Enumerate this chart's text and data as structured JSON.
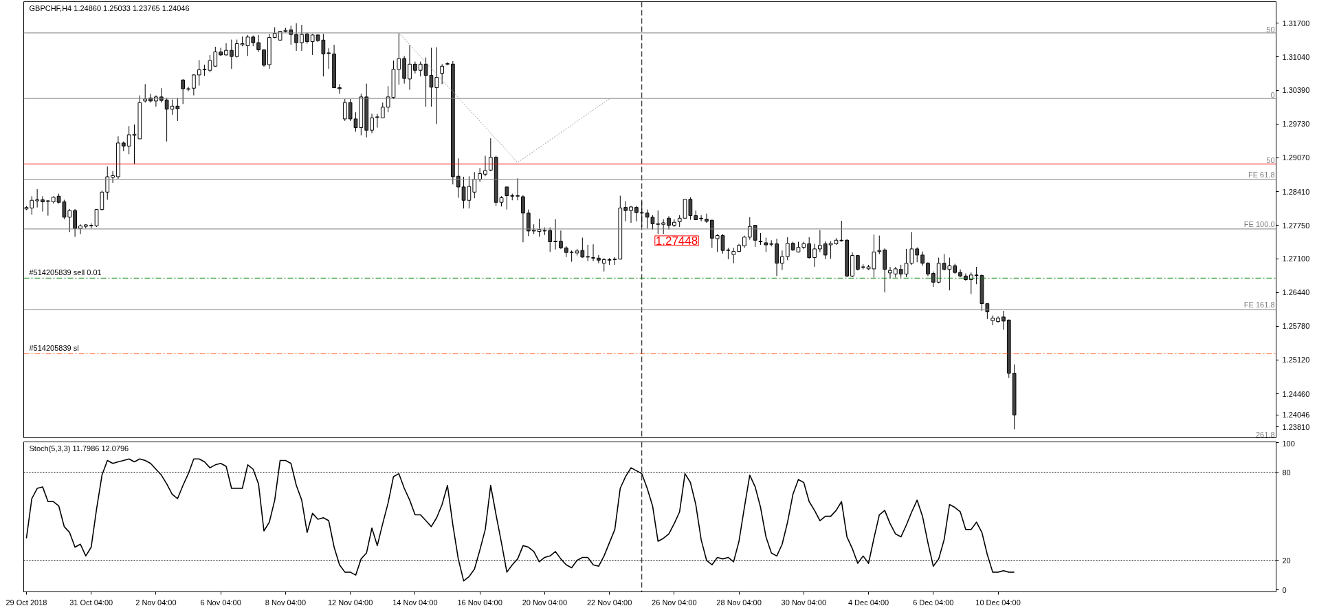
{
  "chart_data": [
    {
      "type": "candlestick",
      "title": "GBPCHF,H4  1.24860 1.25033 1.23765 1.24046",
      "categories": [
        "29 Oct 2018",
        null,
        null,
        null,
        null,
        null,
        null,
        null,
        null,
        null,
        null,
        null,
        "31 Oct 04:00",
        null,
        null,
        null,
        null,
        null,
        null,
        null,
        null,
        null,
        null,
        null,
        "2 Nov 04:00",
        null,
        null,
        null,
        null,
        null,
        null,
        null,
        null,
        null,
        null,
        null,
        "6 Nov 04:00",
        null,
        null,
        null,
        null,
        null,
        null,
        null,
        null,
        null,
        null,
        null,
        "8 Nov 04:00",
        null,
        null,
        null,
        null,
        null,
        null,
        null,
        null,
        null,
        null,
        null,
        "12 Nov 04:00",
        null,
        null,
        null,
        null,
        null,
        null,
        null,
        null,
        null,
        null,
        null,
        "14 Nov 04:00",
        null,
        null,
        null,
        null,
        null,
        null,
        null,
        null,
        null,
        null,
        null,
        "16 Nov 04:00",
        null,
        null,
        null,
        null,
        null,
        null,
        null,
        null,
        null,
        null,
        null,
        "20 Nov 04:00",
        null,
        null,
        null,
        null,
        null,
        null,
        null,
        null,
        null,
        null,
        null,
        "22 Nov 04:00",
        null,
        null,
        null,
        null,
        null,
        null,
        null,
        null,
        null,
        null,
        null,
        "26 Nov 04:00",
        null,
        null,
        null,
        null,
        null,
        null,
        null,
        null,
        null,
        null,
        null,
        "28 Nov 04:00",
        null,
        null,
        null,
        null,
        null,
        null,
        null,
        null,
        null,
        null,
        null,
        "30 Nov 04:00",
        null,
        null,
        null,
        null,
        null,
        null,
        null,
        null,
        null,
        null,
        null,
        "4 Dec 04:00",
        null,
        null,
        null,
        null,
        null,
        null,
        null,
        null,
        null,
        null,
        null,
        "6 Dec 04:00",
        null,
        null,
        null,
        null,
        null,
        null,
        null,
        null,
        null,
        null,
        null,
        "10 Dec 04:00",
        null,
        null,
        null,
        null,
        null,
        null,
        null,
        null,
        null,
        null,
        null,
        null,
        null,
        null,
        null,
        null,
        null,
        null,
        null,
        null,
        null,
        null,
        null,
        null,
        null,
        null,
        null,
        null,
        null,
        null,
        null,
        null,
        null,
        null,
        null,
        null,
        null,
        null,
        null,
        null,
        null,
        null,
        null,
        null,
        null,
        null,
        null,
        null,
        null,
        null,
        null
      ],
      "ohlc": [
        [
          1.2807,
          1.2813,
          1.2805,
          1.281
        ],
        [
          1.2809,
          1.2832,
          1.2796,
          1.2824
        ],
        [
          1.2823,
          1.2846,
          1.281,
          1.2825
        ],
        [
          1.2825,
          1.2832,
          1.2802,
          1.2821
        ],
        [
          1.2823,
          1.2824,
          1.2794,
          1.2822
        ],
        [
          1.2821,
          1.2832,
          1.2818,
          1.283
        ],
        [
          1.2832,
          1.2837,
          1.2818,
          1.282
        ],
        [
          1.2821,
          1.2825,
          1.2787,
          1.2791
        ],
        [
          1.2791,
          1.2807,
          1.2762,
          1.2804
        ],
        [
          1.2804,
          1.2807,
          1.2753,
          1.2769
        ],
        [
          1.2769,
          1.2777,
          1.2758,
          1.2774
        ],
        [
          1.2773,
          1.2777,
          1.2769,
          1.2776
        ],
        [
          1.2774,
          1.2779,
          1.2769,
          1.2775
        ],
        [
          1.2774,
          1.2807,
          1.2772,
          1.2806
        ],
        [
          1.2806,
          1.2843,
          1.2804,
          1.284
        ],
        [
          1.284,
          1.289,
          1.2825,
          1.287
        ],
        [
          1.2869,
          1.2881,
          1.2858,
          1.2872
        ],
        [
          1.287,
          1.2949,
          1.2865,
          1.2936
        ],
        [
          1.2936,
          1.2939,
          1.292,
          1.293
        ],
        [
          1.293,
          1.2969,
          1.2914,
          1.2952
        ],
        [
          1.2951,
          1.2972,
          1.2895,
          1.2953
        ],
        [
          1.2944,
          1.3029,
          1.2944,
          1.3015
        ],
        [
          1.3018,
          1.3051,
          1.3015,
          1.3022
        ],
        [
          1.3024,
          1.3032,
          1.3015,
          1.3018
        ],
        [
          1.3018,
          1.3029,
          1.3007,
          1.3026
        ],
        [
          1.3026,
          1.3043,
          1.3015,
          1.3019
        ],
        [
          1.302,
          1.3024,
          1.2939,
          1.3002
        ],
        [
          1.3002,
          1.3021,
          1.2991,
          1.3008
        ],
        [
          1.3008,
          1.3024,
          1.2979,
          1.3003
        ],
        [
          1.3059,
          1.3061,
          1.3012,
          1.3042
        ],
        [
          1.3041,
          1.3046,
          1.3037,
          1.3042
        ],
        [
          1.3043,
          1.307,
          1.3029,
          1.3069
        ],
        [
          1.3069,
          1.3098,
          1.3048,
          1.3079
        ],
        [
          1.3079,
          1.3089,
          1.3067,
          1.308
        ],
        [
          1.3078,
          1.3108,
          1.3074,
          1.3097
        ],
        [
          1.3086,
          1.3124,
          1.3085,
          1.3114
        ],
        [
          1.3114,
          1.3122,
          1.3106,
          1.3108
        ],
        [
          1.3108,
          1.3131,
          1.3107,
          1.3117
        ],
        [
          1.3117,
          1.3138,
          1.3081,
          1.3105
        ],
        [
          1.3105,
          1.3138,
          1.3103,
          1.313
        ],
        [
          1.3128,
          1.3144,
          1.3125,
          1.313
        ],
        [
          1.3126,
          1.3147,
          1.3106,
          1.3143
        ],
        [
          1.3143,
          1.3146,
          1.3125,
          1.3132
        ],
        [
          1.3132,
          1.3147,
          1.3114,
          1.3118
        ],
        [
          1.3118,
          1.3119,
          1.3085,
          1.3088
        ],
        [
          1.3089,
          1.3149,
          1.3081,
          1.3142
        ],
        [
          1.3142,
          1.3162,
          1.3141,
          1.315
        ],
        [
          1.3137,
          1.3155,
          1.3136,
          1.3154
        ],
        [
          1.3154,
          1.3161,
          1.3152,
          1.3156
        ],
        [
          1.3157,
          1.3165,
          1.3128,
          1.3148
        ],
        [
          1.3148,
          1.317,
          1.3116,
          1.3132
        ],
        [
          1.3132,
          1.3167,
          1.3116,
          1.3148
        ],
        [
          1.3149,
          1.3152,
          1.313,
          1.3134
        ],
        [
          1.3134,
          1.3149,
          1.3108,
          1.3147
        ],
        [
          1.3147,
          1.3148,
          1.3133,
          1.3136
        ],
        [
          1.3137,
          1.3149,
          1.3066,
          1.311
        ],
        [
          1.3112,
          1.3121,
          1.3081,
          1.3111
        ],
        [
          1.311,
          1.3128,
          1.3043,
          1.3044
        ],
        [
          1.3044,
          1.3051,
          1.3032,
          1.3042
        ],
        [
          1.2983,
          1.3022,
          1.2979,
          1.3015
        ],
        [
          1.3015,
          1.3022,
          1.2979,
          1.2983
        ],
        [
          1.2983,
          1.2996,
          1.2958,
          1.2966
        ],
        [
          1.2966,
          1.3032,
          1.2951,
          1.3026
        ],
        [
          1.3026,
          1.3052,
          1.2947,
          1.2961
        ],
        [
          1.2961,
          1.2993,
          1.2955,
          1.2985
        ],
        [
          1.2986,
          1.2993,
          1.2966,
          1.2987
        ],
        [
          1.2985,
          1.3015,
          1.2985,
          1.3006
        ],
        [
          1.3006,
          1.3047,
          1.2996,
          1.3026
        ],
        [
          1.3025,
          1.3097,
          1.3022,
          1.308
        ],
        [
          1.308,
          1.315,
          1.305,
          1.3101
        ],
        [
          1.3101,
          1.3106,
          1.3052,
          1.3062
        ],
        [
          1.3061,
          1.3127,
          1.304,
          1.309
        ],
        [
          1.309,
          1.3095,
          1.3072,
          1.3078
        ],
        [
          1.3078,
          1.3095,
          1.3066,
          1.309
        ],
        [
          1.309,
          1.3103,
          1.3007,
          1.3068
        ],
        [
          1.3068,
          1.3122,
          1.3007,
          1.3045
        ],
        [
          1.3044,
          1.3123,
          1.2973,
          1.3064
        ],
        [
          1.3072,
          1.309,
          1.3051,
          1.3086
        ],
        [
          1.309,
          1.3094,
          1.3088,
          1.3091
        ],
        [
          1.309,
          1.3096,
          1.2855,
          1.287
        ],
        [
          1.2871,
          1.2906,
          1.2829,
          1.285
        ],
        [
          1.285,
          1.287,
          1.2808,
          1.2824
        ],
        [
          1.2824,
          1.2871,
          1.2808,
          1.2851
        ],
        [
          1.284,
          1.2879,
          1.2828,
          1.2865
        ],
        [
          1.2865,
          1.2887,
          1.286,
          1.2876
        ],
        [
          1.2875,
          1.2911,
          1.2871,
          1.2882
        ],
        [
          1.2883,
          1.2945,
          1.2881,
          1.2908
        ],
        [
          1.2908,
          1.2911,
          1.2813,
          1.282
        ],
        [
          1.282,
          1.2832,
          1.2812,
          1.2829
        ],
        [
          1.285,
          1.2851,
          1.2806,
          1.2833
        ],
        [
          1.2833,
          1.2837,
          1.2824,
          1.2832
        ],
        [
          1.2832,
          1.2867,
          1.2824,
          1.2833
        ],
        [
          1.2831,
          1.2834,
          1.2742,
          1.2799
        ],
        [
          1.2799,
          1.2806,
          1.2754,
          1.2764
        ],
        [
          1.2764,
          1.2777,
          1.2758,
          1.2766
        ],
        [
          1.2763,
          1.2788,
          1.2753,
          1.2767
        ],
        [
          1.2765,
          1.2771,
          1.2756,
          1.2764
        ],
        [
          1.2765,
          1.2771,
          1.2723,
          1.2743
        ],
        [
          1.2744,
          1.2787,
          1.2728,
          1.2743
        ],
        [
          1.2744,
          1.2765,
          1.2729,
          1.2731
        ],
        [
          1.2731,
          1.2734,
          1.2713,
          1.2722
        ],
        [
          1.2723,
          1.2726,
          1.2704,
          1.2722
        ],
        [
          1.2721,
          1.2729,
          1.2716,
          1.2725
        ],
        [
          1.2726,
          1.2751,
          1.2712,
          1.2713
        ],
        [
          1.2714,
          1.2737,
          1.2705,
          1.2713
        ],
        [
          1.2712,
          1.2738,
          1.2705,
          1.2711
        ],
        [
          1.2711,
          1.2717,
          1.2701,
          1.2707
        ],
        [
          1.2701,
          1.2711,
          1.2685,
          1.2708
        ],
        [
          1.2707,
          1.2711,
          1.2698,
          1.2708
        ],
        [
          1.2708,
          1.2713,
          1.2698,
          1.2709
        ],
        [
          1.2709,
          1.2833,
          1.2709,
          1.2809
        ],
        [
          1.281,
          1.2822,
          1.2783,
          1.2804
        ],
        [
          1.2804,
          1.2813,
          1.278,
          1.2811
        ],
        [
          1.281,
          1.2813,
          1.2783,
          1.28
        ],
        [
          1.28,
          1.2822,
          1.2772,
          1.2799
        ],
        [
          1.2799,
          1.2806,
          1.2769,
          1.2791
        ],
        [
          1.2791,
          1.2795,
          1.2767,
          1.2778
        ],
        [
          1.2778,
          1.2804,
          1.2758,
          1.2777
        ],
        [
          1.2777,
          1.2787,
          1.2758,
          1.278
        ],
        [
          1.2789,
          1.2793,
          1.2767,
          1.2775
        ],
        [
          1.2775,
          1.2787,
          1.2772,
          1.2781
        ],
        [
          1.2782,
          1.2795,
          1.2772,
          1.2789
        ],
        [
          1.2789,
          1.2827,
          1.2788,
          1.2826
        ],
        [
          1.2826,
          1.283,
          1.2786,
          1.2794
        ],
        [
          1.2794,
          1.2804,
          1.2786,
          1.2786
        ],
        [
          1.2789,
          1.2795,
          1.2783,
          1.2788
        ],
        [
          1.2787,
          1.2798,
          1.278,
          1.2783
        ],
        [
          1.2785,
          1.2786,
          1.2731,
          1.275
        ],
        [
          1.2749,
          1.2758,
          1.2723,
          1.2755
        ],
        [
          1.2755,
          1.2758,
          1.272,
          1.2726
        ],
        [
          1.2727,
          1.2731,
          1.2709,
          1.2726
        ],
        [
          1.2718,
          1.2731,
          1.2701,
          1.2724
        ],
        [
          1.2724,
          1.2739,
          1.2723,
          1.2736
        ],
        [
          1.2735,
          1.2755,
          1.2731,
          1.2752
        ],
        [
          1.2752,
          1.2791,
          1.2747,
          1.2773
        ],
        [
          1.2775,
          1.2776,
          1.2733,
          1.2746
        ],
        [
          1.2744,
          1.276,
          1.2737,
          1.2743
        ],
        [
          1.2741,
          1.2751,
          1.2723,
          1.2737
        ],
        [
          1.2738,
          1.2746,
          1.2734,
          1.2739
        ],
        [
          1.2739,
          1.2749,
          1.2676,
          1.2701
        ],
        [
          1.2701,
          1.2726,
          1.2688,
          1.2714
        ],
        [
          1.2714,
          1.2752,
          1.2707,
          1.274
        ],
        [
          1.274,
          1.2743,
          1.2725,
          1.2727
        ],
        [
          1.2723,
          1.2743,
          1.2722,
          1.2732
        ],
        [
          1.2732,
          1.2743,
          1.2729,
          1.2739
        ],
        [
          1.2739,
          1.2752,
          1.271,
          1.2712
        ],
        [
          1.2712,
          1.2739,
          1.2694,
          1.2729
        ],
        [
          1.2729,
          1.2766,
          1.2723,
          1.2736
        ],
        [
          1.2739,
          1.2744,
          1.2709,
          1.2717
        ],
        [
          1.2737,
          1.2744,
          1.271,
          1.274
        ],
        [
          1.2739,
          1.275,
          1.2737,
          1.2746
        ],
        [
          1.2746,
          1.2784,
          1.2743,
          1.2745
        ],
        [
          1.2746,
          1.2748,
          1.2674,
          1.2676
        ],
        [
          1.2676,
          1.2722,
          1.2674,
          1.2716
        ],
        [
          1.2716,
          1.2717,
          1.2687,
          1.2689
        ],
        [
          1.2694,
          1.2699,
          1.2689,
          1.2693
        ],
        [
          1.269,
          1.2698,
          1.2688,
          1.2694
        ],
        [
          1.269,
          1.2757,
          1.2673,
          1.2723
        ],
        [
          1.2724,
          1.2755,
          1.2719,
          1.2726
        ],
        [
          1.2727,
          1.273,
          1.2644,
          1.2689
        ],
        [
          1.2682,
          1.2694,
          1.2671,
          1.2687
        ],
        [
          1.268,
          1.2694,
          1.2673,
          1.269
        ],
        [
          1.2689,
          1.2698,
          1.2673,
          1.268
        ],
        [
          1.268,
          1.2729,
          1.2674,
          1.2701
        ],
        [
          1.2701,
          1.2762,
          1.2698,
          1.2729
        ],
        [
          1.2729,
          1.2732,
          1.2703,
          1.2717
        ],
        [
          1.2717,
          1.2724,
          1.2696,
          1.2701
        ],
        [
          1.2701,
          1.2703,
          1.2676,
          1.268
        ],
        [
          1.2681,
          1.2685,
          1.2655,
          1.2664
        ],
        [
          1.2664,
          1.2712,
          1.2662,
          1.2701
        ],
        [
          1.2701,
          1.2719,
          1.2687,
          1.2689
        ],
        [
          1.2689,
          1.2712,
          1.2648,
          1.2696
        ],
        [
          1.2696,
          1.27,
          1.268,
          1.2683
        ],
        [
          1.2683,
          1.2689,
          1.2674,
          1.2676
        ],
        [
          1.2676,
          1.2681,
          1.2667,
          1.2669
        ],
        [
          1.2669,
          1.2683,
          1.2641,
          1.2678
        ],
        [
          1.2678,
          1.2694,
          1.266,
          1.2677
        ],
        [
          1.2677,
          1.2679,
          1.2608,
          1.2622
        ],
        [
          1.2622,
          1.2623,
          1.2592,
          1.2606
        ],
        [
          1.2589,
          1.2599,
          1.258,
          1.2594
        ],
        [
          1.2587,
          1.2597,
          1.2585,
          1.2594
        ],
        [
          1.2596,
          1.2608,
          1.2571,
          1.2588
        ],
        [
          1.259,
          1.2591,
          1.2477,
          1.2486
        ],
        [
          1.2486,
          1.25033,
          1.23765,
          1.24046
        ],
        null,
        null,
        null,
        null,
        null,
        null,
        null,
        null,
        null,
        null,
        null,
        null,
        null,
        null,
        null,
        null,
        null,
        null,
        null,
        null,
        null,
        null,
        null,
        null,
        null,
        null,
        null,
        null,
        null,
        null,
        null,
        null,
        null,
        null,
        null,
        null,
        null,
        null,
        null,
        null,
        null,
        null,
        null,
        null,
        null,
        null,
        null,
        null
      ],
      "series": [
        {
          "type": "line",
          "color": "#a0a0a0",
          "line_style": "dotted",
          "values": [
            null,
            null,
            null,
            null,
            null,
            null,
            null,
            null,
            null,
            null,
            null,
            null,
            null,
            null,
            null,
            null,
            null,
            null,
            null,
            null,
            null,
            null,
            null,
            null,
            null,
            null,
            null,
            null,
            null,
            null,
            null,
            null,
            null,
            null,
            null,
            null,
            null,
            null,
            null,
            null,
            null,
            null,
            null,
            null,
            null,
            null,
            null,
            null,
            null,
            null,
            null,
            null,
            null,
            null,
            null,
            null,
            null,
            null,
            null,
            null,
            null,
            null,
            null,
            null,
            null,
            null,
            null,
            null,
            null,
            1.3151,
            null,
            null,
            null,
            null,
            null,
            null,
            null,
            null,
            null,
            null,
            null,
            null,
            null,
            null,
            null,
            null,
            null,
            null,
            null,
            null,
            null,
            1.2898,
            null,
            null,
            null,
            null,
            null,
            null,
            null,
            null,
            null,
            null,
            null,
            null,
            null,
            null,
            null,
            null,
            1.3022,
            null,
            null,
            null,
            null,
            null,
            null,
            null,
            null,
            null,
            null,
            null,
            null,
            null,
            null,
            null,
            null,
            null,
            null,
            null,
            null,
            null,
            null,
            null,
            null,
            null,
            null,
            null,
            null,
            null,
            null,
            null,
            null,
            null,
            null,
            null,
            null,
            null,
            null,
            null,
            null,
            null,
            null,
            null,
            null,
            null,
            null,
            null,
            null,
            null,
            null,
            null,
            null,
            null,
            null,
            null,
            null,
            null,
            null,
            null,
            null,
            null,
            null,
            null,
            null,
            null,
            null,
            null,
            null,
            null,
            null,
            null,
            null,
            null,
            null,
            null,
            null,
            null,
            null,
            null,
            null,
            null,
            null,
            null,
            null,
            null,
            null,
            null,
            null,
            null,
            null,
            null,
            null,
            null,
            null,
            null,
            null,
            null,
            null,
            null,
            null,
            null,
            null,
            null,
            null,
            null,
            null,
            null,
            null,
            null,
            null,
            null,
            null,
            null,
            null,
            null,
            null,
            null,
            null,
            null,
            null,
            null,
            null,
            null
          ]
        }
      ],
      "ylim": [
        1.236,
        1.3212
      ],
      "yticks": [
        {
          "value": 1.317,
          "label": "1.31700"
        },
        {
          "value": 1.3104,
          "label": "1.31040"
        },
        {
          "value": 1.3039,
          "label": "1.30390"
        },
        {
          "value": 1.2973,
          "label": "1.29730"
        },
        {
          "value": 1.2907,
          "label": "1.29070"
        },
        {
          "value": 1.2841,
          "label": "1.28410"
        },
        {
          "value": 1.2775,
          "label": "1.27750"
        },
        {
          "value": 1.271,
          "label": "1.27100"
        },
        {
          "value": 1.2644,
          "label": "1.26440"
        },
        {
          "value": 1.2578,
          "label": "1.25780"
        },
        {
          "value": 1.2512,
          "label": "1.25120"
        },
        {
          "value": 1.2446,
          "label": "1.24460"
        },
        {
          "value": 1.24046,
          "label": "1.24046"
        },
        {
          "value": 1.2381,
          "label": "1.23810"
        }
      ],
      "tick_labels": "y",
      "ref_lines": [
        {
          "axis": "y",
          "value": 1.3151,
          "color": "#808080"
        },
        {
          "axis": "y",
          "value": 1.3023,
          "color": "#808080"
        },
        {
          "axis": "y",
          "value": 1.2895,
          "color": "#ff0000"
        },
        {
          "axis": "y",
          "value": 1.2865,
          "label": "FE 61.8",
          "color": "#808080"
        },
        {
          "axis": "y",
          "value": 1.2768,
          "label": "FE 100.0",
          "color": "#808080"
        },
        {
          "axis": "y",
          "value": 1.2672,
          "label": "#514205839 sell 0.01",
          "color": "#008000",
          "line_style": "dashdot"
        },
        {
          "axis": "y",
          "value": 1.261,
          "label": "FE 161.8",
          "color": "#808080"
        },
        {
          "axis": "y",
          "value": 1.2524,
          "label": "#514205839 sl",
          "color": "#ff4500",
          "line_style": "dashdot"
        }
      ],
      "annotations": [
        "1.27448",
        "261,8",
        "50",
        "0",
        "50"
      ]
    },
    {
      "type": "line",
      "title": "Stoch(5,3,3) 11.7986 12.0796",
      "color": "#000000",
      "values": [
        35,
        62,
        69,
        70,
        60,
        60,
        57,
        43,
        39,
        29,
        31,
        23,
        29,
        55,
        78,
        88,
        86,
        87,
        88,
        89,
        87,
        89,
        88,
        86,
        82,
        78,
        72,
        65,
        62,
        71,
        79,
        89,
        89,
        87,
        83,
        85,
        86,
        84,
        69,
        69,
        69,
        85,
        82,
        72,
        40,
        46,
        61,
        88,
        88,
        86,
        71,
        61,
        39,
        52,
        48,
        49,
        47,
        29,
        17,
        12,
        12,
        10,
        21,
        25,
        42,
        30,
        45,
        59,
        77,
        79,
        69,
        61,
        51,
        51,
        47,
        43,
        49,
        58,
        71,
        44,
        21,
        6,
        9,
        14,
        27,
        41,
        71,
        51,
        32,
        12,
        17,
        21,
        30,
        29,
        26,
        19,
        22,
        23,
        26,
        21,
        17,
        15,
        20,
        22,
        22,
        17,
        16,
        23,
        32,
        41,
        69,
        77,
        83,
        81,
        79,
        69,
        57,
        33,
        35,
        38,
        45,
        53,
        79,
        73,
        58,
        34,
        20,
        17,
        22,
        21,
        22,
        19,
        33,
        56,
        78,
        70,
        56,
        36,
        25,
        23,
        31,
        46,
        65,
        75,
        73,
        60,
        54,
        47,
        50,
        50,
        54,
        60,
        36,
        28,
        18,
        23,
        18,
        35,
        51,
        54,
        45,
        38,
        36,
        44,
        53,
        61,
        50,
        32,
        16,
        21,
        34,
        58,
        56,
        53,
        41,
        41,
        46,
        39,
        24,
        12,
        12,
        13,
        12,
        12,
        null,
        null,
        null,
        null,
        null,
        null,
        null,
        null,
        null,
        null,
        null,
        null,
        null,
        null,
        null,
        null,
        null,
        null,
        null,
        null,
        null,
        null,
        null,
        null,
        null,
        null,
        null,
        null,
        null,
        null,
        null,
        null,
        null,
        null,
        null,
        null,
        null,
        null,
        null,
        null,
        null,
        null,
        null,
        null,
        null,
        null,
        null,
        null
      ],
      "ylim": [
        -1.4,
        100.6
      ],
      "yticks": [
        0,
        20,
        80,
        100
      ],
      "ref_lines": [
        {
          "axis": "y",
          "value": 80,
          "line_style": "dotted"
        },
        {
          "axis": "y",
          "value": 20,
          "line_style": "dotted"
        }
      ]
    }
  ]
}
